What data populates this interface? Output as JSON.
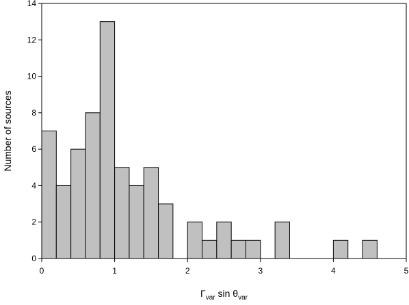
{
  "chart_data": {
    "type": "bar",
    "title": "",
    "xlabel": {
      "main1": "Γ",
      "sub1": "var",
      "main2": " sin θ",
      "sub2": "var"
    },
    "ylabel": "Number of sources",
    "xlim": [
      0,
      5
    ],
    "ylim": [
      0,
      14
    ],
    "x_ticks": [
      "0",
      "1",
      "2",
      "3",
      "4",
      "5"
    ],
    "y_ticks": [
      "0",
      "2",
      "4",
      "6",
      "8",
      "10",
      "12",
      "14"
    ],
    "bin_width": 0.2,
    "bins": [
      {
        "x0": 0.0,
        "count": 7
      },
      {
        "x0": 0.2,
        "count": 4
      },
      {
        "x0": 0.4,
        "count": 6
      },
      {
        "x0": 0.6,
        "count": 8
      },
      {
        "x0": 0.8,
        "count": 13
      },
      {
        "x0": 1.0,
        "count": 5
      },
      {
        "x0": 1.2,
        "count": 4
      },
      {
        "x0": 1.4,
        "count": 5
      },
      {
        "x0": 1.6,
        "count": 3
      },
      {
        "x0": 2.0,
        "count": 2
      },
      {
        "x0": 2.2,
        "count": 1
      },
      {
        "x0": 2.4,
        "count": 2
      },
      {
        "x0": 2.6,
        "count": 1
      },
      {
        "x0": 2.8,
        "count": 1
      },
      {
        "x0": 3.2,
        "count": 2
      },
      {
        "x0": 4.0,
        "count": 1
      },
      {
        "x0": 4.4,
        "count": 1
      }
    ],
    "grid": false,
    "bar_color": "#c0c0c0",
    "edge_color": "#000000"
  }
}
